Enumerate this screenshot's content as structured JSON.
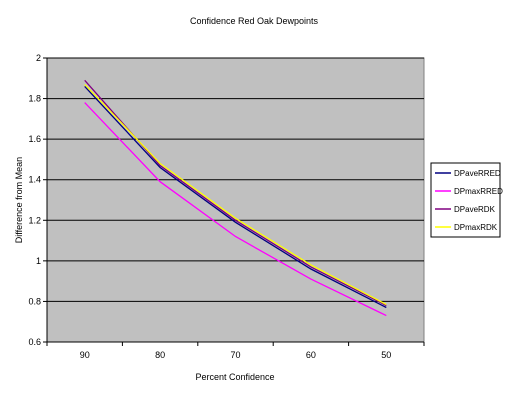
{
  "chart_data": {
    "type": "line",
    "title": "Confidence Red Oak Dewpoints",
    "xlabel": "Percent Confidence",
    "ylabel": "Difference from Mean",
    "categories": [
      "90",
      "80",
      "70",
      "60",
      "50"
    ],
    "ylim": [
      0.6,
      2
    ],
    "yticks": [
      "0.6",
      "0.8",
      "1",
      "1.2",
      "1.4",
      "1.6",
      "1.8",
      "2"
    ],
    "grid": true,
    "legend_position": "right",
    "series": [
      {
        "name": "DPaveRRED",
        "color": "#000080",
        "values": [
          1.86,
          1.46,
          1.19,
          0.96,
          0.77
        ]
      },
      {
        "name": "DPmaxRRED",
        "color": "#ff00ff",
        "values": [
          1.78,
          1.39,
          1.12,
          0.91,
          0.73
        ]
      },
      {
        "name": "DPaveRDK",
        "color": "#800080",
        "values": [
          1.89,
          1.47,
          1.2,
          0.97,
          0.78
        ]
      },
      {
        "name": "DPmaxRDK",
        "color": "#ffff00",
        "values": [
          1.87,
          1.48,
          1.21,
          0.98,
          0.785
        ]
      }
    ]
  }
}
